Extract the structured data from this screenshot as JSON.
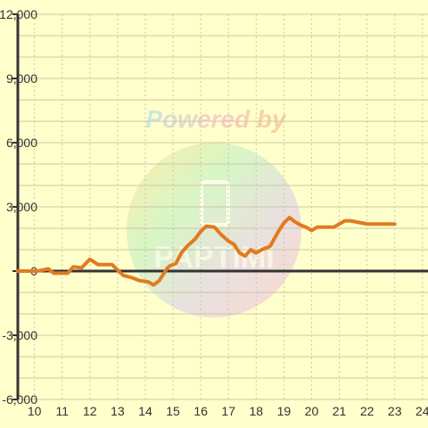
{
  "chart_data": {
    "type": "line",
    "title": "",
    "xlabel": "",
    "ylabel": "",
    "xlim": [
      9.4,
      24.2
    ],
    "ylim": [
      -6000,
      12000
    ],
    "y_ticks": [
      12000,
      9000,
      6000,
      3000,
      0,
      -3000,
      -6000
    ],
    "y_tick_labels": [
      "12,000",
      "9,000",
      "6,000",
      "3,000",
      "0",
      "-3,000",
      "-6,000"
    ],
    "x_ticks": [
      10,
      11,
      12,
      13,
      14,
      15,
      16,
      17,
      18,
      19,
      20,
      21,
      22,
      23,
      24
    ],
    "x_tick_labels": [
      "10",
      "11",
      "12",
      "13",
      "14",
      "15",
      "16",
      "17",
      "18",
      "19",
      "20",
      "21",
      "22",
      "23",
      "24"
    ],
    "grid": true,
    "series": [
      {
        "color": "#e07b20",
        "x": [
          9.4,
          10.1,
          10.5,
          10.7,
          11.2,
          11.4,
          11.7,
          12.0,
          12.3,
          12.8,
          13.0,
          13.2,
          13.5,
          13.8,
          14.1,
          14.3,
          14.5,
          14.8,
          14.9,
          15.1,
          15.3,
          15.5,
          15.8,
          16.0,
          16.2,
          16.5,
          16.7,
          17.0,
          17.2,
          17.4,
          17.6,
          17.8,
          18.0,
          18.2,
          18.5,
          18.8,
          19.0,
          19.2,
          19.4,
          19.6,
          19.8,
          20.0,
          20.2,
          20.4,
          20.8,
          21.0,
          21.2,
          21.4,
          21.8,
          22.0,
          22.5,
          23.0
        ],
        "values": [
          0,
          0,
          100,
          -100,
          -100,
          200,
          150,
          550,
          300,
          300,
          50,
          -200,
          -300,
          -450,
          -500,
          -650,
          -450,
          150,
          250,
          350,
          850,
          1150,
          1500,
          1850,
          2100,
          2050,
          1750,
          1400,
          1250,
          850,
          700,
          1000,
          850,
          1000,
          1150,
          1850,
          2250,
          2500,
          2300,
          2150,
          2050,
          1900,
          2050,
          2050,
          2050,
          2200,
          2350,
          2350,
          2250,
          2200,
          2200,
          2200
        ]
      }
    ]
  },
  "watermark": {
    "text": "Powered by",
    "logo_text": "PAPTIMI"
  }
}
